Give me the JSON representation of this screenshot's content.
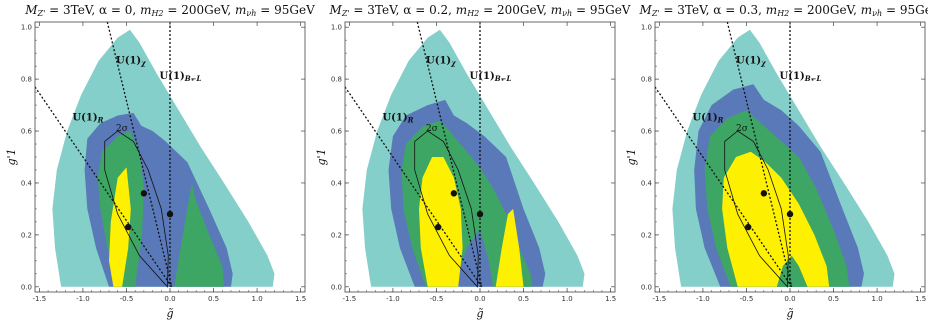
{
  "colors": {
    "band_outer": "#84cfca",
    "band_3": "#5a79b8",
    "band_2": "#3ea664",
    "band_1": "#fdf000",
    "frame": "#444444",
    "lines": "#111111"
  },
  "chart_data": [
    {
      "type": "contour",
      "title": "M_Z' = 3TeV, α = 0, m_H2 = 200GeV, m_νh = 95GeV",
      "title_parts": {
        "a": "M",
        "a_sub": "Z'",
        "b": " = 3TeV, α = 0, ",
        "c": "m",
        "c_sub": "H2",
        "d": " = 200GeV, ",
        "e": "m",
        "e_sub": "νh",
        "f": " = 95GeV"
      },
      "xlabel": "g̃",
      "ylabel": "g'1",
      "xlim": [
        -1.55,
        1.55
      ],
      "ylim": [
        -0.02,
        1.02
      ],
      "xticks": [
        "-1.5",
        "-1.0",
        "-0.5",
        "0.0",
        "0.5",
        "1.0",
        "1.5"
      ],
      "xtick_values": [
        -1.5,
        -1.0,
        -0.5,
        0.0,
        0.5,
        1.0,
        1.5
      ],
      "yticks": [
        "0.0",
        "0.2",
        "0.4",
        "0.6",
        "0.8",
        "1.0"
      ],
      "ytick_values": [
        0.0,
        0.2,
        0.4,
        0.6,
        0.8,
        1.0
      ],
      "region_outer": [
        [
          -1.25,
          0.0
        ],
        [
          -1.32,
          0.15
        ],
        [
          -1.35,
          0.3
        ],
        [
          -1.3,
          0.45
        ],
        [
          -1.18,
          0.6
        ],
        [
          -1.02,
          0.74
        ],
        [
          -0.82,
          0.87
        ],
        [
          -0.6,
          0.96
        ],
        [
          -0.46,
          0.99
        ],
        [
          -0.35,
          0.94
        ],
        [
          -0.15,
          0.82
        ],
        [
          0.1,
          0.68
        ],
        [
          0.35,
          0.54
        ],
        [
          0.62,
          0.4
        ],
        [
          0.9,
          0.25
        ],
        [
          1.12,
          0.12
        ],
        [
          1.2,
          0.05
        ],
        [
          1.18,
          0.0
        ]
      ],
      "region_3": [
        [
          -0.7,
          0.0
        ],
        [
          -0.85,
          0.15
        ],
        [
          -0.95,
          0.3
        ],
        [
          -0.98,
          0.45
        ],
        [
          -0.95,
          0.57
        ],
        [
          -0.8,
          0.63
        ],
        [
          -0.6,
          0.66
        ],
        [
          -0.42,
          0.67
        ],
        [
          -0.33,
          0.62
        ],
        [
          -0.2,
          0.6
        ],
        [
          -0.05,
          0.56
        ],
        [
          0.2,
          0.48
        ],
        [
          0.45,
          0.3
        ],
        [
          0.65,
          0.15
        ],
        [
          0.72,
          0.05
        ],
        [
          0.7,
          0.0
        ]
      ],
      "region_2": [
        [
          -0.55,
          0.0
        ],
        [
          -0.72,
          0.15
        ],
        [
          -0.8,
          0.3
        ],
        [
          -0.83,
          0.42
        ],
        [
          -0.78,
          0.52
        ],
        [
          -0.6,
          0.58
        ],
        [
          -0.46,
          0.6
        ],
        [
          -0.35,
          0.52
        ],
        [
          -0.3,
          0.38
        ],
        [
          -0.32,
          0.2
        ],
        [
          -0.38,
          0.05
        ],
        [
          -0.4,
          0.0
        ]
      ],
      "region_2b": [
        [
          0.05,
          0.0
        ],
        [
          0.12,
          0.15
        ],
        [
          0.2,
          0.3
        ],
        [
          0.25,
          0.4
        ],
        [
          0.3,
          0.33
        ],
        [
          0.45,
          0.2
        ],
        [
          0.6,
          0.08
        ],
        [
          0.62,
          0.0
        ]
      ],
      "region_1": [
        [
          -0.65,
          0.0
        ],
        [
          -0.7,
          0.1
        ],
        [
          -0.68,
          0.25
        ],
        [
          -0.6,
          0.42
        ],
        [
          -0.5,
          0.46
        ],
        [
          -0.45,
          0.3
        ],
        [
          -0.48,
          0.15
        ],
        [
          -0.55,
          0.0
        ]
      ],
      "ellipse_2sigma": [
        [
          -0.03,
          0.0
        ],
        [
          -0.35,
          0.12
        ],
        [
          -0.6,
          0.28
        ],
        [
          -0.75,
          0.45
        ],
        [
          -0.75,
          0.56
        ],
        [
          -0.6,
          0.6
        ],
        [
          -0.42,
          0.56
        ],
        [
          -0.25,
          0.45
        ],
        [
          -0.1,
          0.3
        ],
        [
          -0.02,
          0.12
        ]
      ],
      "points": [
        {
          "x": -0.48,
          "y": 0.23
        },
        {
          "x": -0.3,
          "y": 0.36
        },
        {
          "x": 0.0,
          "y": 0.28
        }
      ],
      "lines": [
        {
          "name": "U(1)_R",
          "x1": -1.55,
          "y1": 0.77,
          "x2": 0.02,
          "y2": 0.0
        },
        {
          "name": "U(1)_χ",
          "x1": -0.72,
          "y1": 1.02,
          "x2": 0.02,
          "y2": 0.0
        },
        {
          "name": "U(1)_B-L",
          "x1": 0.0,
          "y1": 1.02,
          "x2": 0.0,
          "y2": 0.0
        }
      ],
      "annotations": {
        "sigma": "2σ",
        "u1r": "U(1)",
        "u1r_sub": "R",
        "u1chi": "U(1)",
        "u1chi_sub": "χ",
        "u1bl": "U(1)",
        "u1bl_sub": "B−L"
      }
    },
    {
      "type": "contour",
      "title": "M_Z' = 3TeV, α = 0.2, m_H2 = 200GeV, m_νh = 95GeV",
      "title_parts": {
        "a": "M",
        "a_sub": "Z'",
        "b": " = 3TeV, α = 0.2, ",
        "c": "m",
        "c_sub": "H2",
        "d": " = 200GeV, ",
        "e": "m",
        "e_sub": "νh",
        "f": " = 95GeV"
      },
      "xlabel": "g̃",
      "ylabel": "g'1",
      "xlim": [
        -1.55,
        1.55
      ],
      "ylim": [
        -0.02,
        1.02
      ],
      "xticks": [
        "-1.5",
        "-1.0",
        "-0.5",
        "0.0",
        "0.5",
        "1.0",
        "1.5"
      ],
      "xtick_values": [
        -1.5,
        -1.0,
        -0.5,
        0.0,
        0.5,
        1.0,
        1.5
      ],
      "yticks": [
        "0.0",
        "0.2",
        "0.4",
        "0.6",
        "0.8",
        "1.0"
      ],
      "ytick_values": [
        0.0,
        0.2,
        0.4,
        0.6,
        0.8,
        1.0
      ],
      "region_outer": [
        [
          -1.25,
          0.0
        ],
        [
          -1.32,
          0.15
        ],
        [
          -1.35,
          0.3
        ],
        [
          -1.3,
          0.45
        ],
        [
          -1.18,
          0.6
        ],
        [
          -1.02,
          0.74
        ],
        [
          -0.82,
          0.87
        ],
        [
          -0.6,
          0.96
        ],
        [
          -0.46,
          0.99
        ],
        [
          -0.35,
          0.94
        ],
        [
          -0.15,
          0.82
        ],
        [
          0.1,
          0.68
        ],
        [
          0.35,
          0.54
        ],
        [
          0.62,
          0.4
        ],
        [
          0.9,
          0.25
        ],
        [
          1.12,
          0.12
        ],
        [
          1.2,
          0.05
        ],
        [
          1.18,
          0.0
        ]
      ],
      "region_3": [
        [
          -0.75,
          0.0
        ],
        [
          -0.92,
          0.15
        ],
        [
          -1.02,
          0.3
        ],
        [
          -1.05,
          0.45
        ],
        [
          -1.0,
          0.58
        ],
        [
          -0.85,
          0.66
        ],
        [
          -0.6,
          0.7
        ],
        [
          -0.4,
          0.72
        ],
        [
          -0.3,
          0.66
        ],
        [
          -0.15,
          0.63
        ],
        [
          0.05,
          0.58
        ],
        [
          0.3,
          0.5
        ],
        [
          0.5,
          0.3
        ],
        [
          0.68,
          0.15
        ],
        [
          0.75,
          0.05
        ],
        [
          0.72,
          0.0
        ]
      ],
      "region_2": [
        [
          -0.62,
          0.0
        ],
        [
          -0.78,
          0.15
        ],
        [
          -0.88,
          0.3
        ],
        [
          -0.9,
          0.45
        ],
        [
          -0.85,
          0.55
        ],
        [
          -0.65,
          0.62
        ],
        [
          -0.45,
          0.64
        ],
        [
          -0.3,
          0.58
        ],
        [
          -0.15,
          0.52
        ],
        [
          0.0,
          0.46
        ],
        [
          0.15,
          0.38
        ],
        [
          0.3,
          0.28
        ],
        [
          0.45,
          0.15
        ],
        [
          0.58,
          0.05
        ],
        [
          0.6,
          0.0
        ],
        [
          0.15,
          0.0
        ],
        [
          0.1,
          0.1
        ],
        [
          0.0,
          0.22
        ],
        [
          -0.15,
          0.15
        ],
        [
          -0.3,
          0.0
        ]
      ],
      "region_1": [
        [
          -0.6,
          0.0
        ],
        [
          -0.68,
          0.15
        ],
        [
          -0.7,
          0.3
        ],
        [
          -0.66,
          0.42
        ],
        [
          -0.55,
          0.5
        ],
        [
          -0.42,
          0.5
        ],
        [
          -0.3,
          0.42
        ],
        [
          -0.22,
          0.3
        ],
        [
          -0.2,
          0.15
        ],
        [
          -0.25,
          0.0
        ]
      ],
      "region_1b": [
        [
          0.18,
          0.0
        ],
        [
          0.25,
          0.15
        ],
        [
          0.32,
          0.28
        ],
        [
          0.38,
          0.3
        ],
        [
          0.45,
          0.15
        ],
        [
          0.5,
          0.0
        ]
      ],
      "ellipse_2sigma": [
        [
          -0.03,
          0.0
        ],
        [
          -0.35,
          0.12
        ],
        [
          -0.6,
          0.28
        ],
        [
          -0.75,
          0.45
        ],
        [
          -0.75,
          0.56
        ],
        [
          -0.6,
          0.6
        ],
        [
          -0.42,
          0.56
        ],
        [
          -0.25,
          0.45
        ],
        [
          -0.1,
          0.3
        ],
        [
          -0.02,
          0.12
        ]
      ],
      "points": [
        {
          "x": -0.48,
          "y": 0.23
        },
        {
          "x": -0.3,
          "y": 0.36
        },
        {
          "x": 0.0,
          "y": 0.28
        }
      ],
      "lines": [
        {
          "name": "U(1)_R",
          "x1": -1.55,
          "y1": 0.77,
          "x2": 0.02,
          "y2": 0.0
        },
        {
          "name": "U(1)_χ",
          "x1": -0.72,
          "y1": 1.02,
          "x2": 0.02,
          "y2": 0.0
        },
        {
          "name": "U(1)_B-L",
          "x1": 0.0,
          "y1": 1.02,
          "x2": 0.0,
          "y2": 0.0
        }
      ],
      "annotations": {
        "sigma": "2σ",
        "u1r": "U(1)",
        "u1r_sub": "R",
        "u1chi": "U(1)",
        "u1chi_sub": "χ",
        "u1bl": "U(1)",
        "u1bl_sub": "B−L"
      }
    },
    {
      "type": "contour",
      "title": "M_Z' = 3TeV, α = 0.3, m_H2 = 200GeV, m_νh = 95GeV",
      "title_parts": {
        "a": "M",
        "a_sub": "Z'",
        "b": " = 3TeV, α = 0.3, ",
        "c": "m",
        "c_sub": "H2",
        "d": " = 200GeV, ",
        "e": "m",
        "e_sub": "νh",
        "f": " = 95GeV"
      },
      "xlabel": "g̃",
      "ylabel": "g'1",
      "xlim": [
        -1.55,
        1.55
      ],
      "ylim": [
        -0.02,
        1.02
      ],
      "xticks": [
        "-1.5",
        "-1.0",
        "-0.5",
        "0.0",
        "0.5",
        "1.0",
        "1.5"
      ],
      "xtick_values": [
        -1.5,
        -1.0,
        -0.5,
        0.0,
        0.5,
        1.0,
        1.5
      ],
      "yticks": [
        "0.0",
        "0.2",
        "0.4",
        "0.6",
        "0.8",
        "1.0"
      ],
      "ytick_values": [
        0.0,
        0.2,
        0.4,
        0.6,
        0.8,
        1.0
      ],
      "region_outer": [
        [
          -1.25,
          0.0
        ],
        [
          -1.32,
          0.15
        ],
        [
          -1.35,
          0.3
        ],
        [
          -1.3,
          0.45
        ],
        [
          -1.18,
          0.6
        ],
        [
          -1.02,
          0.74
        ],
        [
          -0.82,
          0.87
        ],
        [
          -0.6,
          0.96
        ],
        [
          -0.46,
          0.99
        ],
        [
          -0.35,
          0.94
        ],
        [
          -0.15,
          0.82
        ],
        [
          0.1,
          0.68
        ],
        [
          0.35,
          0.54
        ],
        [
          0.62,
          0.4
        ],
        [
          0.9,
          0.25
        ],
        [
          1.12,
          0.12
        ],
        [
          1.2,
          0.05
        ],
        [
          1.18,
          0.0
        ]
      ],
      "region_3": [
        [
          -0.8,
          0.0
        ],
        [
          -0.98,
          0.15
        ],
        [
          -1.08,
          0.3
        ],
        [
          -1.1,
          0.45
        ],
        [
          -1.05,
          0.6
        ],
        [
          -0.9,
          0.7
        ],
        [
          -0.65,
          0.76
        ],
        [
          -0.42,
          0.78
        ],
        [
          -0.3,
          0.72
        ],
        [
          -0.1,
          0.68
        ],
        [
          0.1,
          0.62
        ],
        [
          0.35,
          0.52
        ],
        [
          0.58,
          0.32
        ],
        [
          0.78,
          0.15
        ],
        [
          0.85,
          0.05
        ],
        [
          0.82,
          0.0
        ]
      ],
      "region_2": [
        [
          -0.68,
          0.0
        ],
        [
          -0.85,
          0.15
        ],
        [
          -0.95,
          0.3
        ],
        [
          -0.98,
          0.45
        ],
        [
          -0.92,
          0.58
        ],
        [
          -0.72,
          0.65
        ],
        [
          -0.5,
          0.68
        ],
        [
          -0.3,
          0.62
        ],
        [
          -0.1,
          0.56
        ],
        [
          0.1,
          0.5
        ],
        [
          0.3,
          0.38
        ],
        [
          0.5,
          0.22
        ],
        [
          0.65,
          0.08
        ],
        [
          0.68,
          0.0
        ]
      ],
      "region_1": [
        [
          -0.6,
          0.0
        ],
        [
          -0.72,
          0.15
        ],
        [
          -0.78,
          0.3
        ],
        [
          -0.76,
          0.42
        ],
        [
          -0.62,
          0.5
        ],
        [
          -0.45,
          0.52
        ],
        [
          -0.28,
          0.48
        ],
        [
          -0.1,
          0.42
        ],
        [
          0.1,
          0.32
        ],
        [
          0.28,
          0.2
        ],
        [
          0.42,
          0.08
        ],
        [
          0.45,
          0.0
        ],
        [
          0.2,
          0.0
        ],
        [
          0.1,
          0.08
        ],
        [
          0.02,
          0.12
        ],
        [
          -0.08,
          0.08
        ],
        [
          -0.15,
          0.0
        ]
      ],
      "region_2c": [
        [
          -0.15,
          0.0
        ],
        [
          -0.08,
          0.08
        ],
        [
          0.02,
          0.12
        ],
        [
          0.1,
          0.08
        ],
        [
          0.2,
          0.0
        ]
      ],
      "ellipse_2sigma": [
        [
          -0.03,
          0.0
        ],
        [
          -0.35,
          0.12
        ],
        [
          -0.6,
          0.28
        ],
        [
          -0.75,
          0.45
        ],
        [
          -0.75,
          0.56
        ],
        [
          -0.6,
          0.6
        ],
        [
          -0.42,
          0.56
        ],
        [
          -0.25,
          0.45
        ],
        [
          -0.1,
          0.3
        ],
        [
          -0.02,
          0.12
        ]
      ],
      "points": [
        {
          "x": -0.48,
          "y": 0.23
        },
        {
          "x": -0.3,
          "y": 0.36
        },
        {
          "x": 0.0,
          "y": 0.28
        }
      ],
      "lines": [
        {
          "name": "U(1)_R",
          "x1": -1.55,
          "y1": 0.77,
          "x2": 0.02,
          "y2": 0.0
        },
        {
          "name": "U(1)_χ",
          "x1": -0.72,
          "y1": 1.02,
          "x2": 0.02,
          "y2": 0.0
        },
        {
          "name": "U(1)_B-L",
          "x1": 0.0,
          "y1": 1.02,
          "x2": 0.0,
          "y2": 0.0
        }
      ],
      "annotations": {
        "sigma": "2σ",
        "u1r": "U(1)",
        "u1r_sub": "R",
        "u1chi": "U(1)",
        "u1chi_sub": "χ",
        "u1bl": "U(1)",
        "u1bl_sub": "B−L"
      }
    }
  ]
}
